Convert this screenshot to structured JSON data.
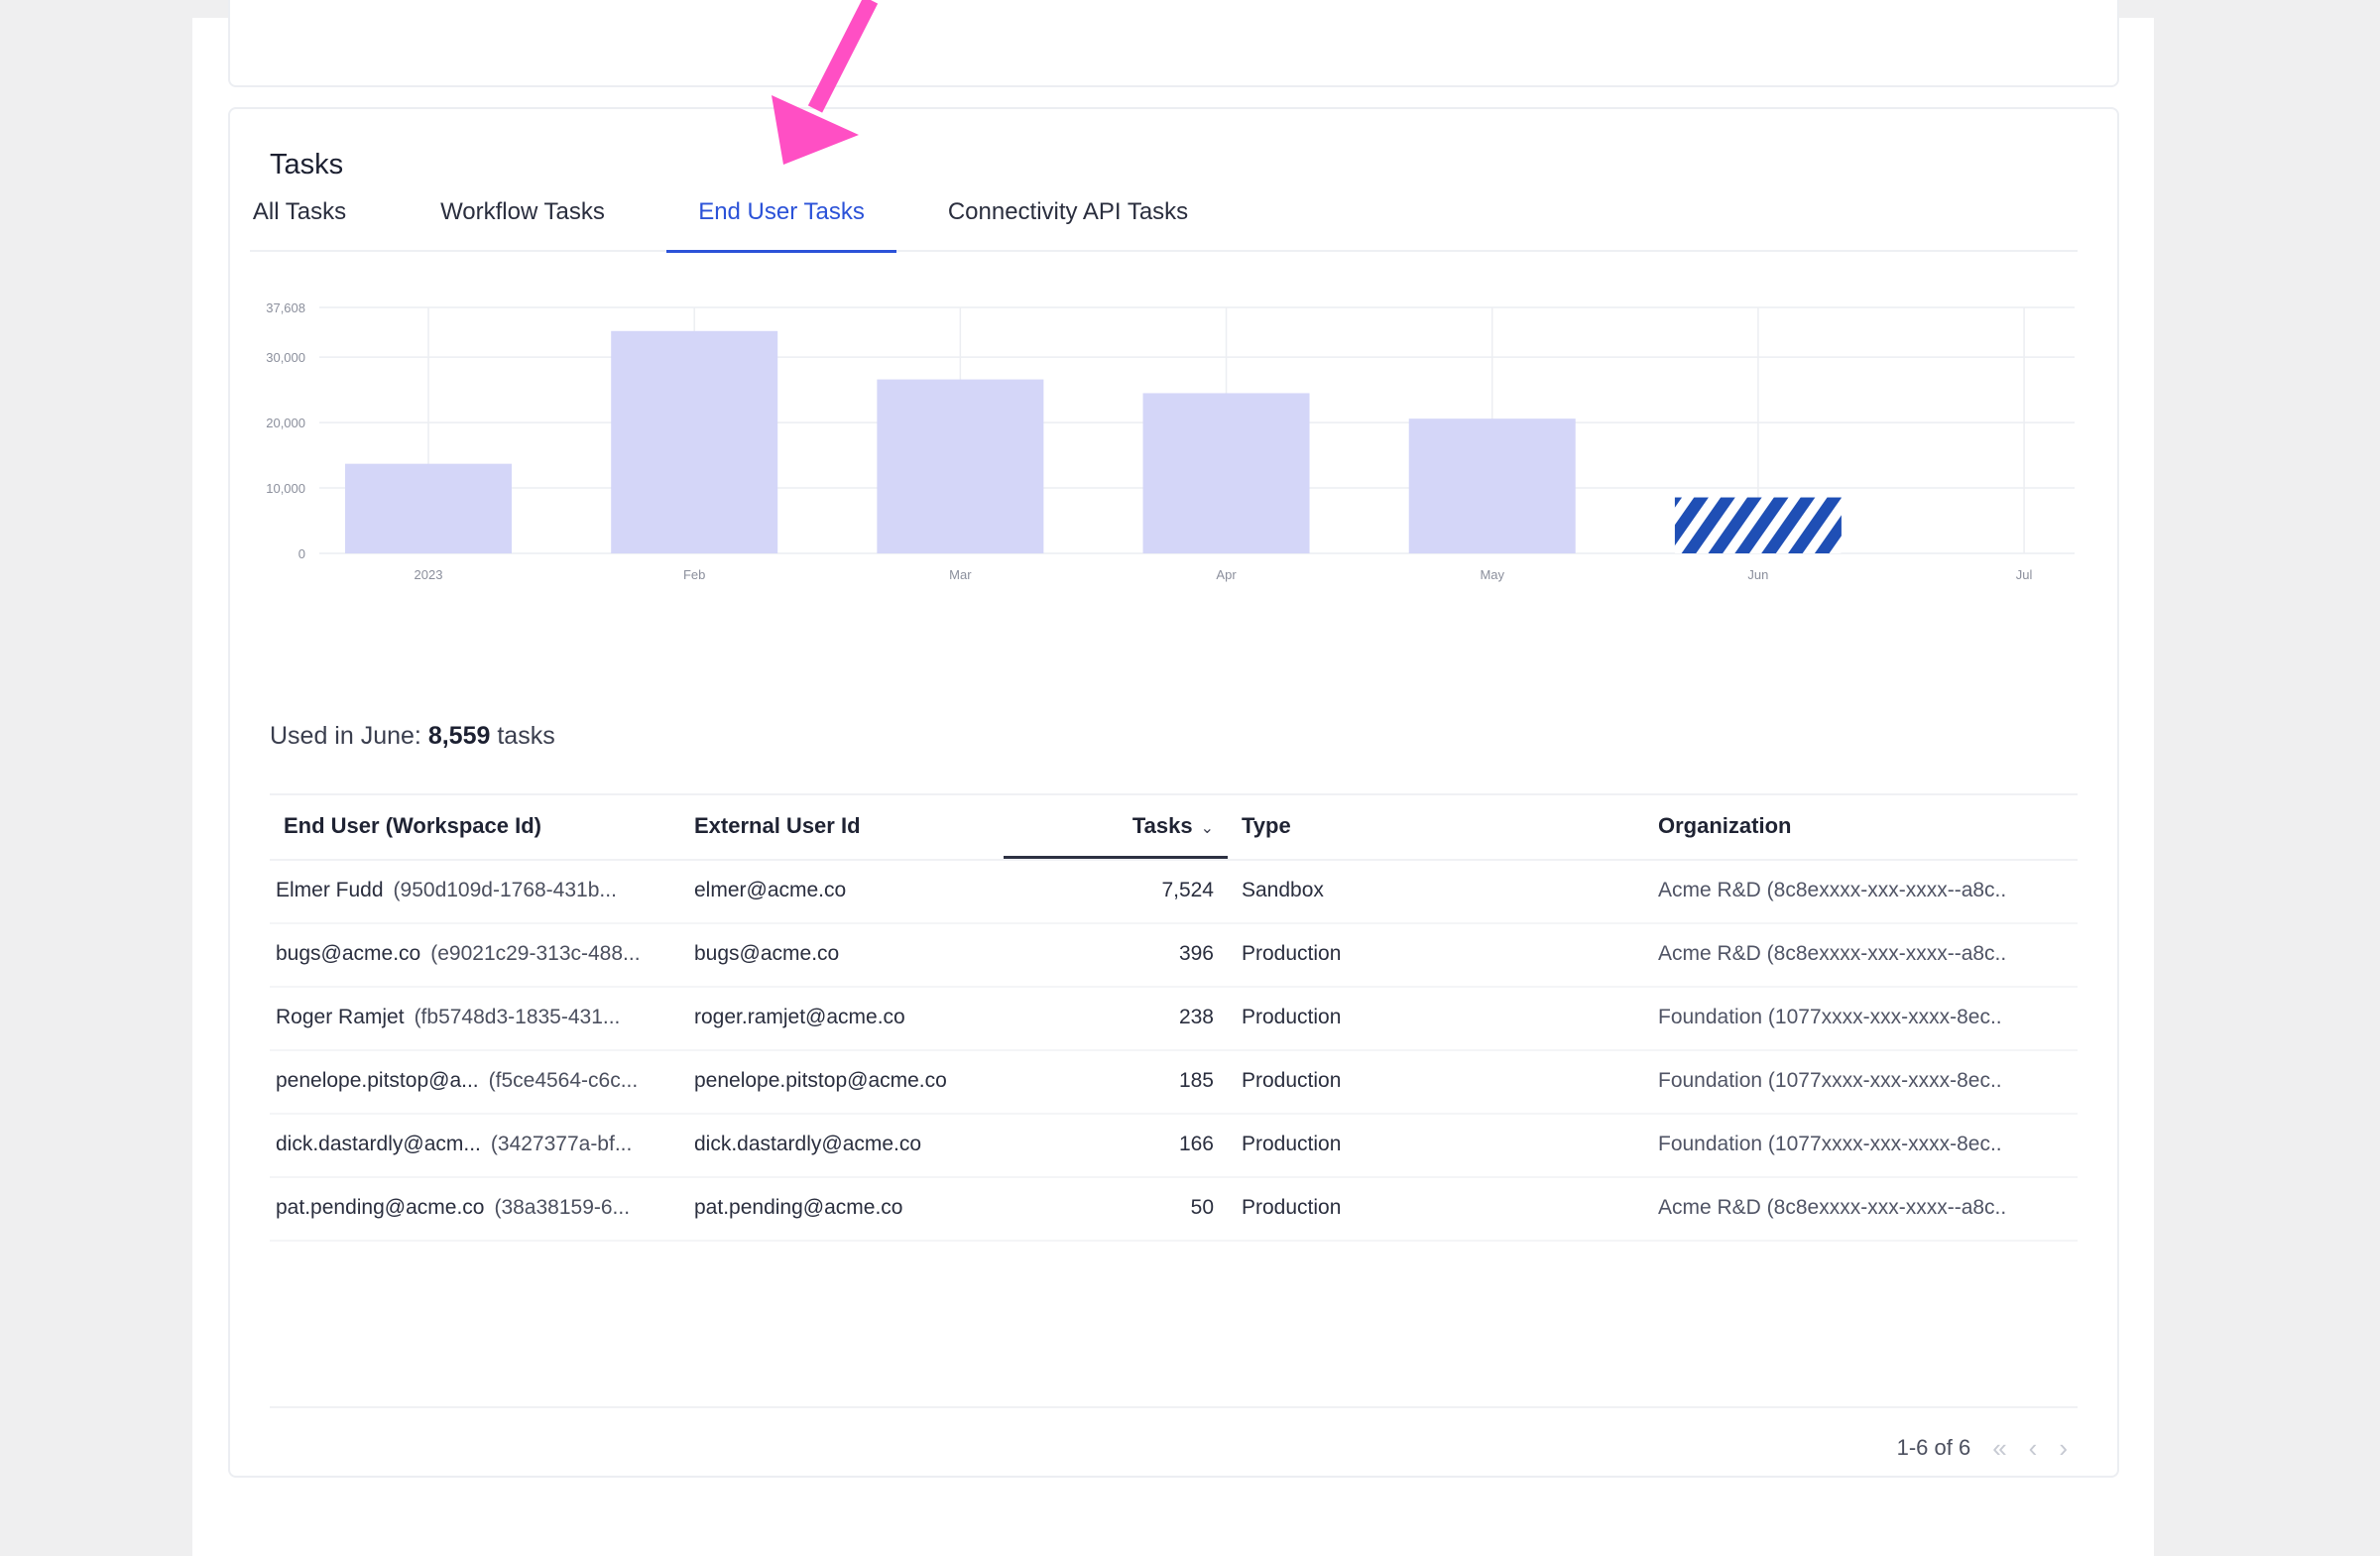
{
  "card_title": "Tasks",
  "tabs": [
    {
      "label": "All Tasks",
      "active": false
    },
    {
      "label": "Workflow Tasks",
      "active": false
    },
    {
      "label": "End User Tasks",
      "active": true
    },
    {
      "label": "Connectivity API Tasks",
      "active": false
    }
  ],
  "chart_data": {
    "type": "bar",
    "categories": [
      "2023",
      "Feb",
      "Mar",
      "Apr",
      "May",
      "Jun",
      "Jul"
    ],
    "values": [
      13700,
      34000,
      26600,
      24500,
      20600,
      8559,
      null
    ],
    "ylim": [
      0,
      37608
    ],
    "yticks": [
      0,
      10000,
      20000,
      30000,
      37608
    ],
    "ytick_labels": [
      "0",
      "10,000",
      "20,000",
      "30,000",
      "37,608"
    ],
    "highlight_category": "Jun",
    "colors": {
      "bar": "#d4d6f8",
      "highlight": "#1f4fb5",
      "grid": "#eceef2"
    },
    "grid": true,
    "xlabel": "",
    "ylabel": ""
  },
  "usage": {
    "prefix": "Used in June:",
    "value": "8,559",
    "suffix": "tasks"
  },
  "table": {
    "headers": {
      "end_user": "End User (Workspace Id)",
      "external_id": "External User Id",
      "tasks": "Tasks",
      "type": "Type",
      "organization": "Organization"
    },
    "rows": [
      {
        "name": "Elmer Fudd",
        "workspace": "(950d109d-1768-431b...",
        "external": "elmer@acme.co",
        "tasks": "7,524",
        "type": "Sandbox",
        "org": "Acme R&D (8c8exxxx-xxx-xxxx--a8c.."
      },
      {
        "name": "bugs@acme.co",
        "workspace": "(e9021c29-313c-488...",
        "external": "bugs@acme.co",
        "tasks": "396",
        "type": "Production",
        "org": "Acme R&D (8c8exxxx-xxx-xxxx--a8c.."
      },
      {
        "name": "Roger Ramjet",
        "workspace": "(fb5748d3-1835-431...",
        "external": "roger.ramjet@acme.co",
        "tasks": "238",
        "type": "Production",
        "org": "Foundation (1077xxxx-xxx-xxxx-8ec.."
      },
      {
        "name": "penelope.pitstop@a...",
        "workspace": "(f5ce4564-c6c...",
        "external": "penelope.pitstop@acme.co",
        "tasks": "185",
        "type": "Production",
        "org": "Foundation (1077xxxx-xxx-xxxx-8ec.."
      },
      {
        "name": "dick.dastardly@acm...",
        "workspace": "(3427377a-bf...",
        "external": "dick.dastardly@acme.co",
        "tasks": "166",
        "type": "Production",
        "org": "Foundation (1077xxxx-xxx-xxxx-8ec.."
      },
      {
        "name": "pat.pending@acme.co",
        "workspace": "(38a38159-6...",
        "external": "pat.pending@acme.co",
        "tasks": "50",
        "type": "Production",
        "org": "Acme R&D (8c8exxxx-xxx-xxxx--a8c.."
      }
    ]
  },
  "pagination": {
    "label": "1-6 of 6",
    "first_icon": "double-chevron-left-icon",
    "prev_icon": "chevron-left-icon",
    "next_icon": "chevron-right-icon"
  },
  "annotation": {
    "icon": "pink-arrow-icon",
    "color": "#ff4fc4"
  }
}
